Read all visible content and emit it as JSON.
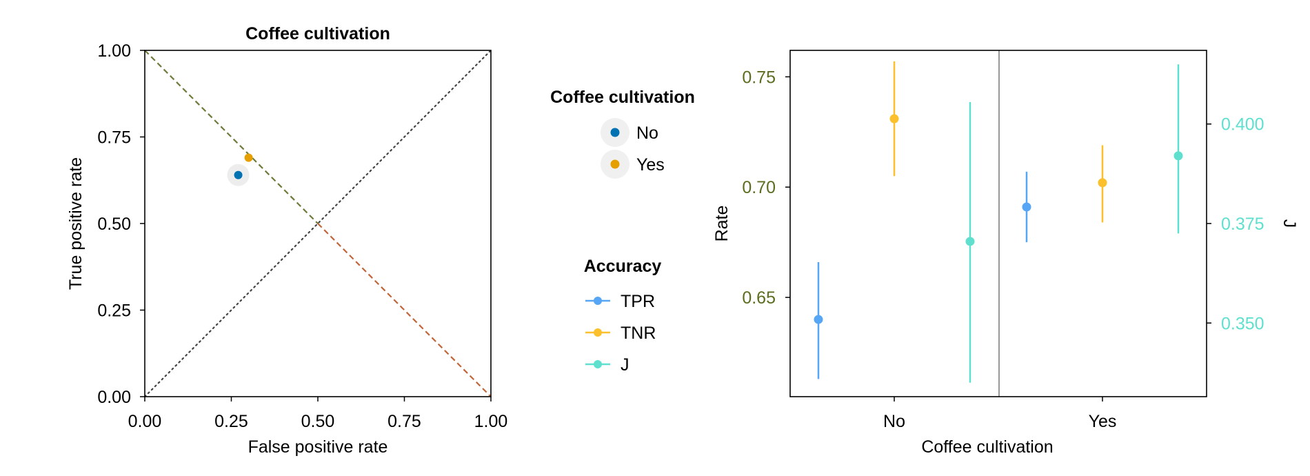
{
  "colors": {
    "group_no": "#0072b2",
    "group_yes": "#e69f00",
    "tpr": "#56a6f5",
    "tnr": "#fcc02c",
    "j": "#5fe0cf",
    "left_axis": "#5b6d1e",
    "diag_upper": "#6f7a3a",
    "diag_lower": "#c0663a"
  },
  "chart_data": [
    {
      "type": "scatter",
      "title": "Coffee cultivation",
      "xlabel": "False positive rate",
      "ylabel": "True positive rate",
      "xlim": [
        0,
        1
      ],
      "ylim": [
        0,
        1
      ],
      "xticks": [
        "0.00",
        "0.25",
        "0.50",
        "0.75",
        "1.00"
      ],
      "yticks": [
        "0.00",
        "0.25",
        "0.50",
        "0.75",
        "1.00"
      ],
      "grid": false,
      "reference_lines": [
        "diagonal y = x (dotted)",
        "diagonal y = 1 - x (dashed)"
      ],
      "series": [
        {
          "name": "No",
          "points": [
            {
              "x": 0.27,
              "y": 0.64
            }
          ]
        },
        {
          "name": "Yes",
          "points": [
            {
              "x": 0.3,
              "y": 0.69
            }
          ]
        }
      ]
    },
    {
      "type": "scatter",
      "subtype": "errorbar",
      "xlabel": "Coffee cultivation",
      "ylabel": "Rate",
      "y2label": "J",
      "categories": [
        "No",
        "Yes"
      ],
      "ylim": [
        0.605,
        0.762
      ],
      "y2lim": [
        0.3315,
        0.4185
      ],
      "yticks": [
        "0.65",
        "0.70",
        "0.75"
      ],
      "y2ticks": [
        "0.350",
        "0.375",
        "0.400"
      ],
      "grid": false,
      "legend": {
        "title": "Accuracy",
        "placement": "left of chart",
        "entries": [
          "TPR",
          "TNR",
          "J"
        ]
      },
      "series": [
        {
          "name": "TPR",
          "axis": "left",
          "values": [
            0.64,
            0.691
          ],
          "lower": [
            0.613,
            0.675
          ],
          "upper": [
            0.666,
            0.707
          ]
        },
        {
          "name": "TNR",
          "axis": "left",
          "values": [
            0.731,
            0.702
          ],
          "lower": [
            0.705,
            0.684
          ],
          "upper": [
            0.757,
            0.719
          ]
        },
        {
          "name": "J",
          "axis": "right",
          "values": [
            0.3705,
            0.392
          ],
          "lower": [
            0.335,
            0.3725
          ],
          "upper": [
            0.4055,
            0.415
          ]
        }
      ]
    }
  ],
  "legend_groups": {
    "title": "Coffee cultivation",
    "entries": [
      "No",
      "Yes"
    ]
  }
}
